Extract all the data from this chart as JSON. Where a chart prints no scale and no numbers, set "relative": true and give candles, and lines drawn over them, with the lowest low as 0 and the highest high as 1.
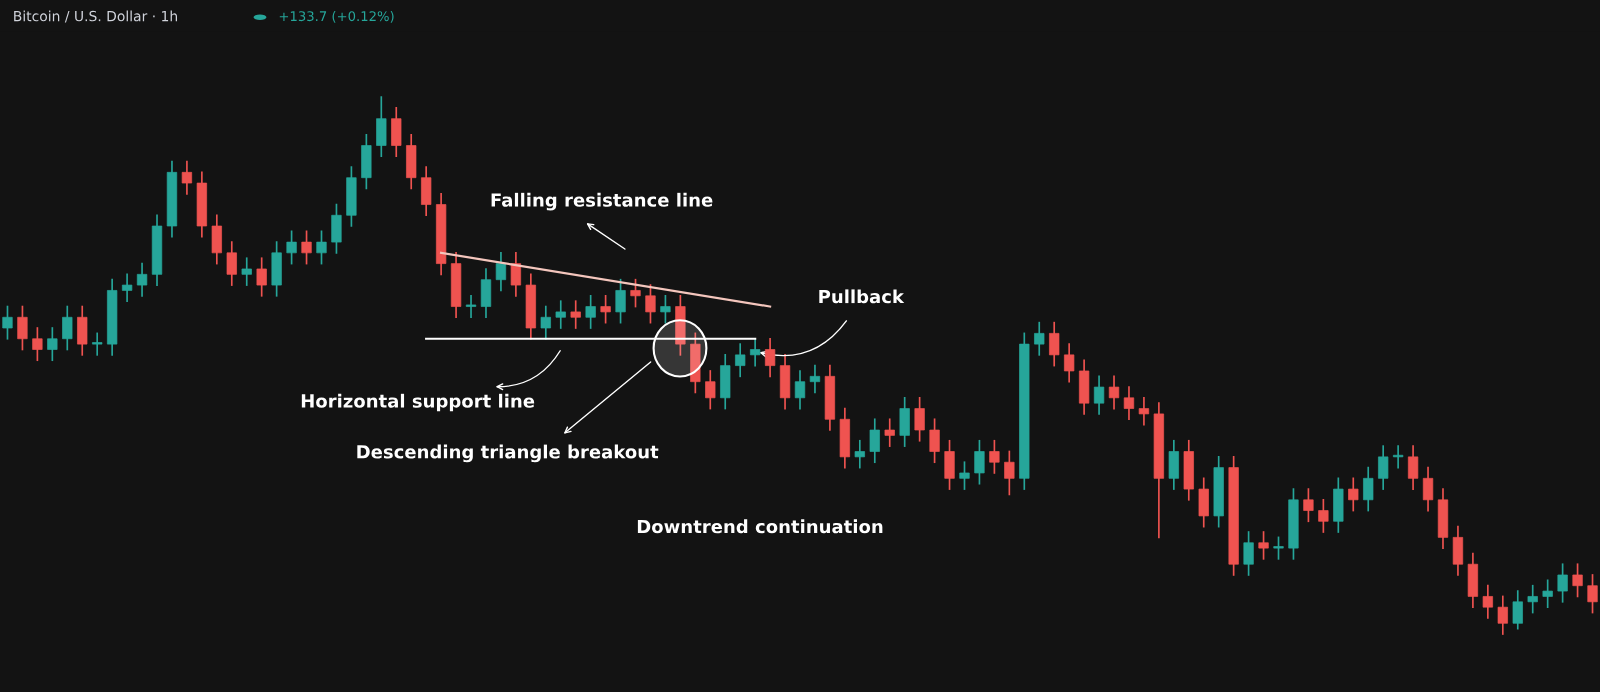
{
  "chart_data": {
    "type": "candlestick",
    "title": "Bitcoin / U.S. Dollar · 1h",
    "subtitle": "+133.7 (+0.12%)",
    "relative": true,
    "categories": [
      null,
      null,
      null,
      null,
      null,
      null,
      null,
      null,
      null,
      null,
      null,
      null,
      null,
      null,
      null,
      null,
      null,
      null,
      null,
      null,
      null,
      null,
      null,
      null,
      null,
      null,
      null,
      null,
      null,
      null,
      null,
      null,
      null,
      null,
      null,
      null,
      null,
      null,
      null,
      null,
      null,
      null,
      null,
      null,
      null,
      null,
      null,
      null,
      null,
      null,
      null,
      null,
      null,
      null,
      null,
      null,
      null,
      null,
      null,
      null,
      null,
      null,
      null,
      null,
      null,
      null,
      null,
      null,
      null,
      null,
      null,
      null,
      null,
      null,
      null,
      null,
      null,
      null,
      null,
      null,
      null,
      null,
      null,
      null,
      null,
      null,
      null,
      null,
      null,
      null,
      null,
      null,
      null,
      null,
      null,
      null,
      null,
      null,
      null,
      null,
      null,
      null,
      null,
      null,
      null,
      null,
      null
    ],
    "ohlc": [
      [
        0.57,
        0.61,
        0.55,
        0.59
      ],
      [
        0.59,
        0.61,
        0.53,
        0.55
      ],
      [
        0.55,
        0.57,
        0.51,
        0.53
      ],
      [
        0.53,
        0.57,
        0.51,
        0.55
      ],
      [
        0.55,
        0.61,
        0.53,
        0.59
      ],
      [
        0.59,
        0.61,
        0.52,
        0.54
      ],
      [
        0.54,
        0.56,
        0.52,
        0.54
      ],
      [
        0.54,
        0.66,
        0.52,
        0.64
      ],
      [
        0.64,
        0.67,
        0.62,
        0.65
      ],
      [
        0.65,
        0.69,
        0.63,
        0.67
      ],
      [
        0.67,
        0.78,
        0.65,
        0.76
      ],
      [
        0.76,
        0.88,
        0.74,
        0.86
      ],
      [
        0.86,
        0.88,
        0.82,
        0.84
      ],
      [
        0.84,
        0.86,
        0.74,
        0.76
      ],
      [
        0.76,
        0.78,
        0.69,
        0.71
      ],
      [
        0.71,
        0.73,
        0.65,
        0.67
      ],
      [
        0.67,
        0.7,
        0.65,
        0.68
      ],
      [
        0.68,
        0.7,
        0.63,
        0.65
      ],
      [
        0.65,
        0.73,
        0.63,
        0.71
      ],
      [
        0.71,
        0.75,
        0.69,
        0.73
      ],
      [
        0.73,
        0.75,
        0.69,
        0.71
      ],
      [
        0.71,
        0.75,
        0.69,
        0.73
      ],
      [
        0.73,
        0.8,
        0.71,
        0.78
      ],
      [
        0.78,
        0.87,
        0.76,
        0.85
      ],
      [
        0.85,
        0.93,
        0.83,
        0.91
      ],
      [
        0.91,
        1.0,
        0.89,
        0.96
      ],
      [
        0.96,
        0.98,
        0.89,
        0.91
      ],
      [
        0.91,
        0.93,
        0.83,
        0.85
      ],
      [
        0.85,
        0.87,
        0.78,
        0.8
      ],
      [
        0.8,
        0.82,
        0.67,
        0.69
      ],
      [
        0.69,
        0.71,
        0.59,
        0.61
      ],
      [
        0.61,
        0.63,
        0.59,
        0.61
      ],
      [
        0.61,
        0.68,
        0.59,
        0.66
      ],
      [
        0.66,
        0.71,
        0.64,
        0.69
      ],
      [
        0.69,
        0.71,
        0.63,
        0.65
      ],
      [
        0.65,
        0.67,
        0.55,
        0.57
      ],
      [
        0.57,
        0.61,
        0.55,
        0.59
      ],
      [
        0.59,
        0.62,
        0.57,
        0.6
      ],
      [
        0.6,
        0.62,
        0.57,
        0.59
      ],
      [
        0.59,
        0.63,
        0.57,
        0.61
      ],
      [
        0.61,
        0.63,
        0.58,
        0.6
      ],
      [
        0.6,
        0.66,
        0.58,
        0.64
      ],
      [
        0.64,
        0.66,
        0.61,
        0.63
      ],
      [
        0.63,
        0.65,
        0.58,
        0.6
      ],
      [
        0.6,
        0.63,
        0.58,
        0.61
      ],
      [
        0.61,
        0.63,
        0.52,
        0.54
      ],
      [
        0.54,
        0.56,
        0.45,
        0.47
      ],
      [
        0.47,
        0.49,
        0.42,
        0.44
      ],
      [
        0.44,
        0.52,
        0.42,
        0.5
      ],
      [
        0.5,
        0.54,
        0.48,
        0.52
      ],
      [
        0.52,
        0.55,
        0.5,
        0.53
      ],
      [
        0.53,
        0.55,
        0.48,
        0.5
      ],
      [
        0.5,
        0.52,
        0.42,
        0.44
      ],
      [
        0.44,
        0.49,
        0.42,
        0.47
      ],
      [
        0.47,
        0.5,
        0.45,
        0.48
      ],
      [
        0.48,
        0.5,
        0.38,
        0.4
      ],
      [
        0.4,
        0.42,
        0.31,
        0.33
      ],
      [
        0.33,
        0.36,
        0.31,
        0.34
      ],
      [
        0.34,
        0.4,
        0.32,
        0.38
      ],
      [
        0.38,
        0.4,
        0.35,
        0.37
      ],
      [
        0.37,
        0.44,
        0.35,
        0.42
      ],
      [
        0.42,
        0.44,
        0.36,
        0.38
      ],
      [
        0.38,
        0.4,
        0.32,
        0.34
      ],
      [
        0.34,
        0.36,
        0.27,
        0.29
      ],
      [
        0.29,
        0.32,
        0.27,
        0.3
      ],
      [
        0.3,
        0.36,
        0.28,
        0.34
      ],
      [
        0.34,
        0.36,
        0.3,
        0.32
      ],
      [
        0.32,
        0.34,
        0.26,
        0.29
      ],
      [
        0.29,
        0.56,
        0.27,
        0.54
      ],
      [
        0.54,
        0.58,
        0.52,
        0.56
      ],
      [
        0.56,
        0.58,
        0.5,
        0.52
      ],
      [
        0.52,
        0.54,
        0.47,
        0.49
      ],
      [
        0.49,
        0.51,
        0.41,
        0.43
      ],
      [
        0.43,
        0.48,
        0.41,
        0.46
      ],
      [
        0.46,
        0.48,
        0.42,
        0.44
      ],
      [
        0.44,
        0.46,
        0.4,
        0.42
      ],
      [
        0.42,
        0.44,
        0.39,
        0.41
      ],
      [
        0.41,
        0.43,
        0.18,
        0.29
      ],
      [
        0.29,
        0.36,
        0.27,
        0.34
      ],
      [
        0.34,
        0.36,
        0.25,
        0.27
      ],
      [
        0.27,
        0.29,
        0.2,
        0.22
      ],
      [
        0.22,
        0.33,
        0.2,
        0.31
      ],
      [
        0.31,
        0.33,
        0.11,
        0.13
      ],
      [
        0.13,
        0.19,
        0.11,
        0.17
      ],
      [
        0.17,
        0.19,
        0.14,
        0.16
      ],
      [
        0.16,
        0.18,
        0.14,
        0.16
      ],
      [
        0.16,
        0.27,
        0.14,
        0.25
      ],
      [
        0.25,
        0.27,
        0.21,
        0.23
      ],
      [
        0.23,
        0.25,
        0.19,
        0.21
      ],
      [
        0.21,
        0.29,
        0.19,
        0.27
      ],
      [
        0.27,
        0.29,
        0.23,
        0.25
      ],
      [
        0.25,
        0.31,
        0.23,
        0.29
      ],
      [
        0.29,
        0.35,
        0.27,
        0.33
      ],
      [
        0.33,
        0.35,
        0.31,
        0.33
      ],
      [
        0.33,
        0.35,
        0.27,
        0.29
      ],
      [
        0.29,
        0.31,
        0.23,
        0.25
      ],
      [
        0.25,
        0.27,
        0.16,
        0.18
      ],
      [
        0.18,
        0.2,
        0.11,
        0.13
      ],
      [
        0.13,
        0.15,
        0.05,
        0.07
      ],
      [
        0.07,
        0.09,
        0.03,
        0.05
      ],
      [
        0.05,
        0.07,
        0.0,
        0.02
      ],
      [
        0.02,
        0.08,
        0.01,
        0.06
      ],
      [
        0.06,
        0.09,
        0.04,
        0.07
      ],
      [
        0.07,
        0.1,
        0.05,
        0.08
      ],
      [
        0.08,
        0.13,
        0.06,
        0.11
      ],
      [
        0.11,
        0.13,
        0.07,
        0.09
      ],
      [
        0.09,
        0.11,
        0.04,
        0.06
      ]
    ],
    "series": [
      {
        "type": "line",
        "color": "#f4c6bd",
        "values": [
          null,
          null,
          null,
          null,
          null,
          null,
          null,
          null,
          null,
          null,
          null,
          null,
          null,
          null,
          null,
          null,
          null,
          null,
          null,
          null,
          null,
          null,
          null,
          null,
          null,
          null,
          null,
          null,
          null,
          0.71,
          null,
          null,
          null,
          null,
          null,
          null,
          null,
          null,
          null,
          null,
          null,
          null,
          null,
          null,
          null,
          null,
          null,
          null,
          null,
          null,
          null,
          0.61,
          null,
          null,
          null,
          null,
          null,
          null,
          null,
          null,
          null,
          null,
          null,
          null,
          null,
          null,
          null,
          null,
          null,
          null,
          null,
          null,
          null,
          null,
          null,
          null,
          null,
          null,
          null,
          null,
          null,
          null,
          null,
          null,
          null,
          null,
          null,
          null,
          null,
          null,
          null,
          null,
          null,
          null,
          null,
          null,
          null,
          null,
          null,
          null,
          null,
          null,
          null,
          null,
          null,
          null,
          null
        ]
      },
      {
        "type": "line",
        "color": "#ffffff",
        "values": [
          null,
          null,
          null,
          null,
          null,
          null,
          null,
          null,
          null,
          null,
          null,
          null,
          null,
          null,
          null,
          null,
          null,
          null,
          null,
          null,
          null,
          null,
          null,
          null,
          null,
          null,
          null,
          null,
          0.55,
          null,
          null,
          null,
          null,
          null,
          null,
          null,
          null,
          null,
          null,
          null,
          null,
          null,
          null,
          null,
          null,
          null,
          null,
          null,
          null,
          null,
          0.55,
          null,
          null,
          null,
          null,
          null,
          null,
          null,
          null,
          null,
          null,
          null,
          null,
          null,
          null,
          null,
          null,
          null,
          null,
          null,
          null,
          null,
          null,
          null,
          null,
          null,
          null,
          null,
          null,
          null,
          null,
          null,
          null,
          null,
          null,
          null,
          null,
          null,
          null,
          null,
          null,
          null,
          null,
          null,
          null,
          null,
          null,
          null,
          null,
          null,
          null,
          null,
          null,
          null,
          null,
          null,
          null
        ]
      }
    ],
    "annotations": [
      "Falling resistance line",
      "Horizontal support line",
      "Descending triangle breakout",
      "Pullback",
      "Downtrend continuation"
    ]
  }
}
